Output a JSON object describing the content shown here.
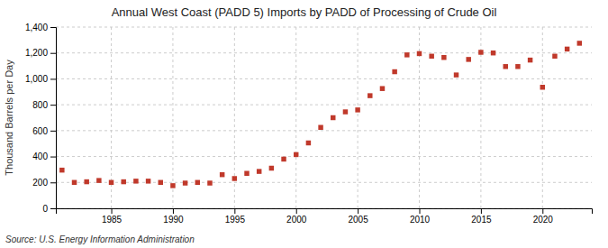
{
  "chart_data": {
    "type": "scatter",
    "title": "Annual West Coast (PADD 5) Imports by PADD of Processing of Crude Oil",
    "ylabel": "Thousand Barrels per Day",
    "source": "Source: U.S. Energy Information Administration",
    "color": "#c0392b",
    "marker": "square",
    "grid": true,
    "x": [
      1981,
      1982,
      1983,
      1984,
      1985,
      1986,
      1987,
      1988,
      1989,
      1990,
      1991,
      1992,
      1993,
      1994,
      1995,
      1996,
      1997,
      1998,
      1999,
      2000,
      2001,
      2002,
      2003,
      2004,
      2005,
      2006,
      2007,
      2008,
      2009,
      2010,
      2011,
      2012,
      2013,
      2014,
      2015,
      2016,
      2017,
      2018,
      2019,
      2020,
      2021,
      2022,
      2023
    ],
    "values": [
      295,
      200,
      205,
      215,
      200,
      205,
      210,
      210,
      200,
      175,
      195,
      200,
      195,
      260,
      230,
      270,
      285,
      310,
      380,
      415,
      505,
      625,
      700,
      745,
      760,
      870,
      925,
      1055,
      1185,
      1195,
      1175,
      1165,
      1030,
      1150,
      1205,
      1200,
      1095,
      1095,
      1145,
      935,
      1175,
      1230,
      1275
    ],
    "xlim": [
      1980.5,
      2024
    ],
    "xticks": [
      1985,
      1990,
      1995,
      2000,
      2005,
      2010,
      2015,
      2020
    ],
    "ylim": [
      0,
      1400
    ],
    "yticks": [
      0,
      200,
      400,
      600,
      800,
      {
        "value": 1000,
        "label": "1,000"
      },
      {
        "value": 1200,
        "label": "1,200"
      },
      {
        "value": 1400,
        "label": "1,400"
      }
    ]
  }
}
